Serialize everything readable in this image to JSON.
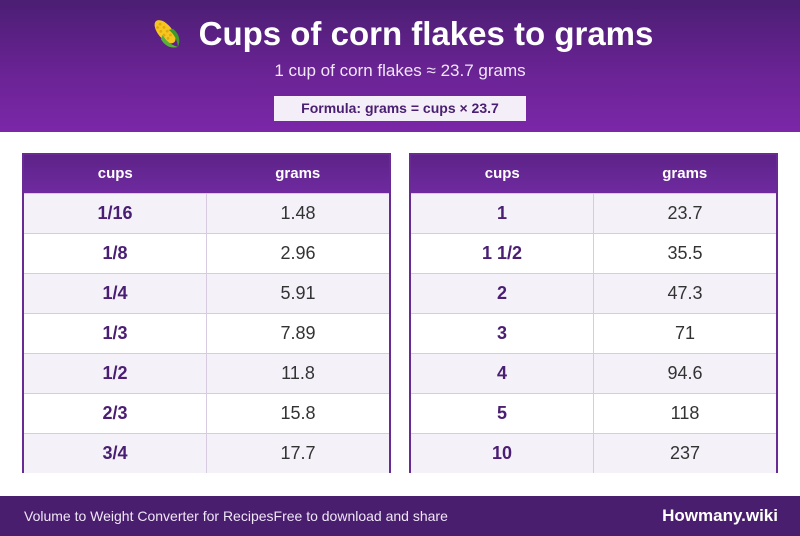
{
  "header": {
    "title": "Cups of corn flakes to grams",
    "subtitle": "1 cup of corn flakes ≈ 23.7 grams",
    "formula": "Formula: grams = cups × 23.7",
    "icon": "corn-icon"
  },
  "tables": {
    "left": {
      "col_cups": "cups",
      "col_grams": "grams",
      "rows": [
        {
          "cups": "1/16",
          "grams": "1.48"
        },
        {
          "cups": "1/8",
          "grams": "2.96"
        },
        {
          "cups": "1/4",
          "grams": "5.91"
        },
        {
          "cups": "1/3",
          "grams": "7.89"
        },
        {
          "cups": "1/2",
          "grams": "11.8"
        },
        {
          "cups": "2/3",
          "grams": "15.8"
        },
        {
          "cups": "3/4",
          "grams": "17.7"
        }
      ]
    },
    "right": {
      "col_cups": "cups",
      "col_grams": "grams",
      "rows": [
        {
          "cups": "1",
          "grams": "23.7"
        },
        {
          "cups": "1 1/2",
          "grams": "35.5"
        },
        {
          "cups": "2",
          "grams": "47.3"
        },
        {
          "cups": "3",
          "grams": "71"
        },
        {
          "cups": "4",
          "grams": "94.6"
        },
        {
          "cups": "5",
          "grams": "118"
        },
        {
          "cups": "10",
          "grams": "237"
        }
      ]
    }
  },
  "footer": {
    "left_text": "Volume to Weight Converter for Recipes",
    "left_text2": "Free to download and share",
    "brand": "Howmany.wiki"
  },
  "colors": {
    "accent": "#6a2394",
    "header_dark": "#4b1e73",
    "footer_bg": "#4a1e6e"
  }
}
